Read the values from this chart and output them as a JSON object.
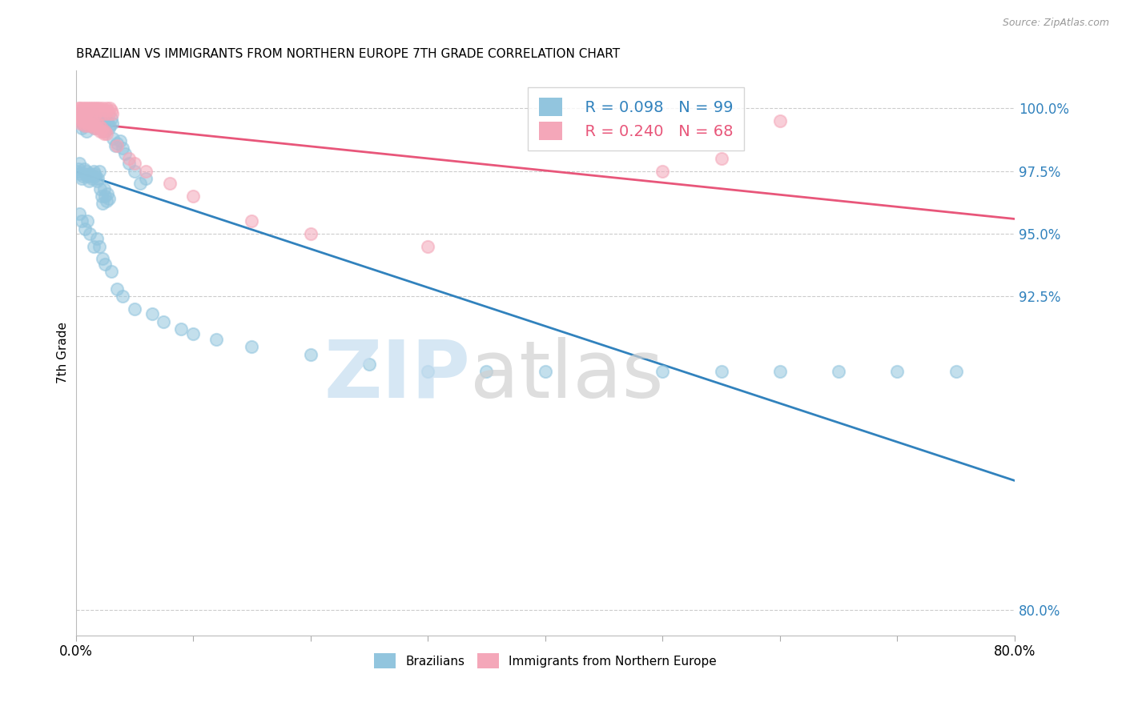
{
  "title": "BRAZILIAN VS IMMIGRANTS FROM NORTHERN EUROPE 7TH GRADE CORRELATION CHART",
  "source": "Source: ZipAtlas.com",
  "ylabel": "7th Grade",
  "legend_blue_label": "Brazilians",
  "legend_pink_label": "Immigrants from Northern Europe",
  "blue_R": "0.098",
  "blue_N": "99",
  "pink_R": "0.240",
  "pink_N": "68",
  "blue_color": "#92c5de",
  "pink_color": "#f4a7b9",
  "blue_line_color": "#3182bd",
  "pink_line_color": "#e8567a",
  "xlim": [
    0.0,
    80.0
  ],
  "ylim": [
    79.0,
    101.5
  ],
  "y_ticks": [
    80.0,
    92.5,
    95.0,
    97.5,
    100.0
  ],
  "y_tick_labels": [
    "80.0%",
    "92.5%",
    "95.0%",
    "97.5%",
    "100.0%"
  ],
  "blue_scatter_x": [
    0.2,
    0.3,
    0.4,
    0.5,
    0.6,
    0.7,
    0.8,
    0.9,
    1.0,
    1.1,
    1.2,
    1.3,
    1.4,
    1.5,
    1.6,
    1.7,
    1.8,
    1.9,
    2.0,
    2.1,
    2.2,
    2.3,
    2.4,
    2.5,
    2.6,
    2.7,
    2.8,
    2.9,
    3.0,
    3.1,
    3.2,
    3.4,
    3.5,
    3.8,
    4.0,
    4.2,
    4.5,
    5.0,
    5.5,
    6.0,
    0.1,
    0.2,
    0.3,
    0.4,
    0.5,
    0.6,
    0.7,
    0.8,
    0.9,
    1.0,
    1.1,
    1.2,
    1.3,
    1.4,
    1.5,
    1.6,
    1.7,
    1.8,
    1.9,
    2.0,
    2.1,
    2.2,
    2.3,
    2.4,
    2.5,
    2.6,
    2.7,
    2.8,
    0.3,
    0.5,
    0.8,
    1.0,
    1.2,
    1.5,
    1.8,
    2.0,
    2.3,
    2.5,
    3.0,
    3.5,
    4.0,
    5.0,
    6.5,
    7.5,
    9.0,
    10.0,
    12.0,
    15.0,
    20.0,
    25.0,
    30.0,
    35.0,
    40.0,
    50.0,
    55.0,
    60.0,
    65.0,
    70.0,
    75.0
  ],
  "blue_scatter_y": [
    99.8,
    99.5,
    99.6,
    99.2,
    99.7,
    99.3,
    99.4,
    99.1,
    99.8,
    99.5,
    99.3,
    99.6,
    99.4,
    99.7,
    99.2,
    99.5,
    99.3,
    99.6,
    99.4,
    99.2,
    99.5,
    99.3,
    99.6,
    99.1,
    99.4,
    99.5,
    99.2,
    99.3,
    99.6,
    99.4,
    98.8,
    98.5,
    98.6,
    98.7,
    98.4,
    98.2,
    97.8,
    97.5,
    97.0,
    97.2,
    97.5,
    97.6,
    97.8,
    97.4,
    97.2,
    97.3,
    97.6,
    97.4,
    97.5,
    97.3,
    97.1,
    97.4,
    97.3,
    97.2,
    97.5,
    97.4,
    97.3,
    97.1,
    97.2,
    97.5,
    96.8,
    96.5,
    96.2,
    96.8,
    96.5,
    96.3,
    96.6,
    96.4,
    95.8,
    95.5,
    95.2,
    95.5,
    95.0,
    94.5,
    94.8,
    94.5,
    94.0,
    93.8,
    93.5,
    92.8,
    92.5,
    92.0,
    91.8,
    91.5,
    91.2,
    91.0,
    90.8,
    90.5,
    90.2,
    89.8,
    89.5,
    89.5,
    89.5,
    89.5,
    89.5,
    89.5,
    89.5,
    89.5,
    89.5
  ],
  "pink_scatter_x": [
    0.2,
    0.3,
    0.4,
    0.5,
    0.6,
    0.7,
    0.8,
    0.9,
    1.0,
    1.1,
    1.2,
    1.3,
    1.4,
    1.5,
    1.6,
    1.7,
    1.8,
    1.9,
    2.0,
    2.1,
    2.2,
    2.3,
    2.4,
    2.5,
    2.6,
    2.7,
    2.8,
    2.9,
    3.0,
    3.1,
    0.1,
    0.2,
    0.3,
    0.4,
    0.5,
    0.6,
    0.7,
    0.8,
    0.9,
    1.0,
    1.1,
    1.2,
    1.3,
    1.4,
    1.5,
    1.6,
    1.7,
    1.8,
    1.9,
    2.0,
    2.1,
    2.2,
    2.3,
    2.4,
    2.5,
    2.6,
    3.5,
    4.5,
    5.0,
    6.0,
    8.0,
    10.0,
    15.0,
    20.0,
    30.0,
    50.0,
    55.0,
    60.0
  ],
  "pink_scatter_y": [
    100.0,
    99.9,
    100.0,
    99.8,
    100.0,
    99.9,
    100.0,
    99.8,
    100.0,
    99.9,
    100.0,
    99.8,
    100.0,
    99.9,
    100.0,
    99.8,
    100.0,
    99.9,
    100.0,
    99.9,
    99.8,
    100.0,
    99.9,
    99.8,
    100.0,
    99.9,
    99.8,
    100.0,
    99.9,
    99.8,
    99.7,
    99.6,
    99.5,
    99.4,
    99.6,
    99.5,
    99.4,
    99.3,
    99.5,
    99.4,
    99.3,
    99.4,
    99.5,
    99.3,
    99.4,
    99.2,
    99.3,
    99.4,
    99.2,
    99.3,
    99.1,
    99.2,
    99.1,
    99.0,
    99.1,
    99.0,
    98.5,
    98.0,
    97.8,
    97.5,
    97.0,
    96.5,
    95.5,
    95.0,
    94.5,
    97.5,
    98.0,
    99.5
  ],
  "figsize": [
    14.06,
    8.92
  ],
  "dpi": 100
}
